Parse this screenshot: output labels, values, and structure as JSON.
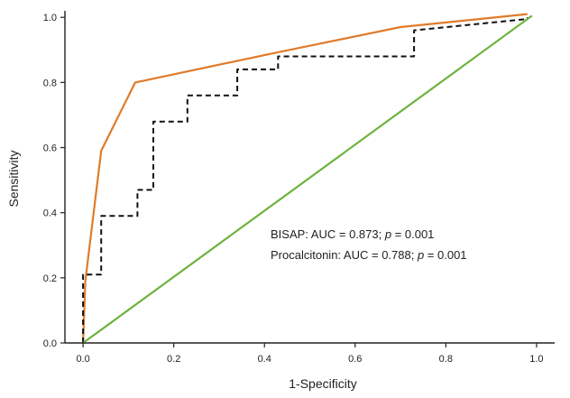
{
  "chart_data": {
    "type": "line",
    "title": "",
    "xlabel": "1-Specificity",
    "ylabel": "Sensitivity",
    "xlim": [
      -0.04,
      1.04
    ],
    "ylim": [
      0,
      1.02
    ],
    "x_ticks": [
      "0.0",
      "0.2",
      "0.4",
      "0.6",
      "0.8",
      "1.0"
    ],
    "y_ticks": [
      "0.0",
      "0.2",
      "0.4",
      "0.6",
      "0.8",
      "1.0"
    ],
    "grid": false,
    "legend": "none",
    "annotations": [
      {
        "prefix": "BISAP: AUC = 0.873; ",
        "p": "p",
        "suffix": " = 0.001"
      },
      {
        "prefix": "Procalcitonin: AUC = 0.788; ",
        "p": "p",
        "suffix": " = 0.001"
      }
    ],
    "series": [
      {
        "color": "#e07b2a",
        "style": "solid",
        "x": [
          0.0,
          0.005,
          0.04,
          0.115,
          0.42,
          0.7,
          0.98
        ],
        "y": [
          0.0,
          0.19,
          0.59,
          0.8,
          0.89,
          0.97,
          1.01
        ]
      },
      {
        "color": "#111111",
        "style": "dashed",
        "x": [
          0.0,
          0.0,
          0.04,
          0.04,
          0.12,
          0.12,
          0.155,
          0.155,
          0.23,
          0.23,
          0.34,
          0.34,
          0.43,
          0.43,
          0.73,
          0.73,
          0.98,
          0.98
        ],
        "y": [
          0.0,
          0.21,
          0.21,
          0.39,
          0.39,
          0.47,
          0.47,
          0.68,
          0.68,
          0.76,
          0.76,
          0.84,
          0.84,
          0.88,
          0.88,
          0.96,
          0.995,
          1.0
        ]
      },
      {
        "color": "#6db33f",
        "style": "solid",
        "x": [
          0.0,
          0.99
        ],
        "y": [
          0.0,
          1.005
        ]
      }
    ]
  }
}
